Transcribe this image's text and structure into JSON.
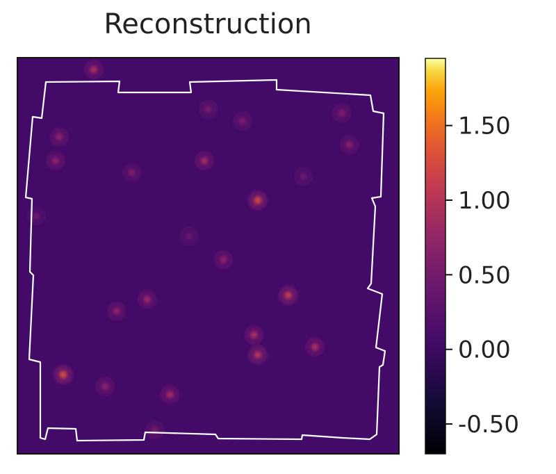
{
  "chart_data": {
    "type": "heatmap",
    "title": "Reconstruction",
    "xlabel": "",
    "ylabel": "",
    "colormap": "inferno",
    "background_value": 0.05,
    "colorbar": {
      "range": [
        -0.7,
        1.95
      ],
      "ticks": [
        -0.5,
        0.0,
        0.5,
        1.0,
        1.5
      ],
      "tick_labels": [
        "-0.50",
        "0.00",
        "0.50",
        "1.00",
        "1.50"
      ]
    },
    "survey_footprint_outline_color": "#ffffff",
    "peaks": [
      {
        "x": 0.2,
        "y": 0.97,
        "value": 0.9
      },
      {
        "x": 0.11,
        "y": 0.8,
        "value": 0.7
      },
      {
        "x": 0.1,
        "y": 0.74,
        "value": 0.7
      },
      {
        "x": 0.3,
        "y": 0.71,
        "value": 0.55
      },
      {
        "x": 0.5,
        "y": 0.87,
        "value": 0.5
      },
      {
        "x": 0.59,
        "y": 0.84,
        "value": 0.55
      },
      {
        "x": 0.63,
        "y": 0.64,
        "value": 1.2
      },
      {
        "x": 0.49,
        "y": 0.74,
        "value": 0.85
      },
      {
        "x": 0.85,
        "y": 0.86,
        "value": 0.6
      },
      {
        "x": 0.87,
        "y": 0.78,
        "value": 0.65
      },
      {
        "x": 0.54,
        "y": 0.49,
        "value": 0.7
      },
      {
        "x": 0.71,
        "y": 0.4,
        "value": 1.1
      },
      {
        "x": 0.34,
        "y": 0.39,
        "value": 0.8
      },
      {
        "x": 0.26,
        "y": 0.36,
        "value": 0.7
      },
      {
        "x": 0.62,
        "y": 0.3,
        "value": 0.9
      },
      {
        "x": 0.63,
        "y": 0.25,
        "value": 1.0
      },
      {
        "x": 0.78,
        "y": 0.27,
        "value": 0.9
      },
      {
        "x": 0.12,
        "y": 0.2,
        "value": 1.25
      },
      {
        "x": 0.23,
        "y": 0.17,
        "value": 0.7
      },
      {
        "x": 0.4,
        "y": 0.15,
        "value": 0.85
      },
      {
        "x": 0.36,
        "y": 0.06,
        "value": 0.5
      },
      {
        "x": 0.05,
        "y": 0.6,
        "value": 0.4
      },
      {
        "x": 0.75,
        "y": 0.7,
        "value": 0.4
      },
      {
        "x": 0.45,
        "y": 0.55,
        "value": 0.4
      }
    ]
  }
}
